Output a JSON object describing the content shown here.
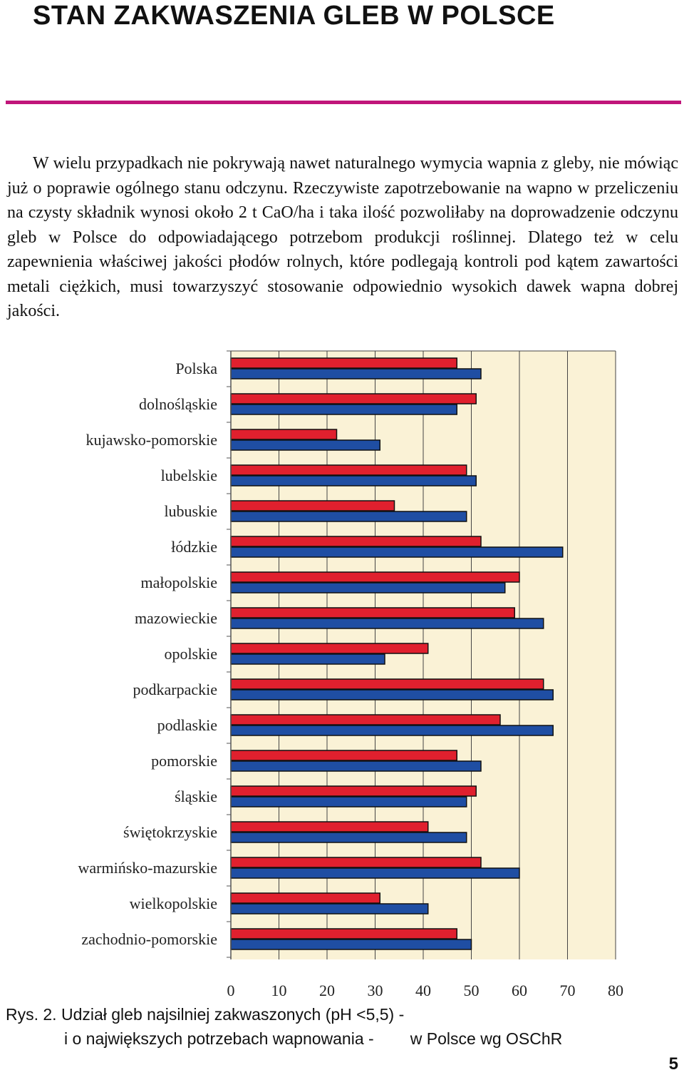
{
  "page": {
    "title": "STAN ZAKWASZENIA GLEB W POLSCE",
    "paragraph": "W wielu przypadkach nie pokrywają nawet naturalnego wymycia wapnia z gleby, nie mówiąc już o poprawie ogólnego stanu odczynu. Rzeczywiste zapotrzebowanie na wapno w przeliczeniu na czysty składnik wynosi około 2 t CaO/ha i taka ilość pozwoliłaby na doprowadzenie odczynu gleb w Polsce do odpowiadającego potrzebom produkcji roślinnej. Dlatego też w celu zapewnienia właściwej jakości płodów rolnych, które podlegają kontroli pod kątem zawartości metali ciężkich, musi towarzyszyć stosowanie odpowiednio wysokich dawek wapna dobrej jakości.",
    "caption_line1": "Rys. 2. Udział gleb najsilniej zakwaszonych (pH <5,5) -",
    "caption_line2": "i o największych potrzebach wapnowania -        w Polsce wg OSChR",
    "page_number": "5",
    "accent_color": "#c0157a"
  },
  "chart_data": {
    "type": "bar",
    "orientation": "horizontal",
    "categories": [
      "Polska",
      "dolnośląskie",
      "kujawsko-pomorskie",
      "lubelskie",
      "lubuskie",
      "łódzkie",
      "małopolskie",
      "mazowieckie",
      "opolskie",
      "podkarpackie",
      "podlaskie",
      "pomorskie",
      "śląskie",
      "świętokrzyskie",
      "warmińsko-mazurskie",
      "wielkopolskie",
      "zachodnio-pomorskie"
    ],
    "series": [
      {
        "color": "#e0202e",
        "values": [
          47,
          51,
          22,
          49,
          34,
          52,
          60,
          59,
          41,
          65,
          56,
          47,
          51,
          41,
          52,
          31,
          47
        ]
      },
      {
        "color": "#1f4ea3",
        "values": [
          52,
          47,
          31,
          51,
          49,
          69,
          57,
          65,
          32,
          67,
          67,
          52,
          49,
          49,
          60,
          41,
          50
        ]
      }
    ],
    "xlim": [
      0,
      80
    ],
    "xticks": [
      "0",
      "10",
      "20",
      "30",
      "40",
      "50",
      "60",
      "70",
      "80"
    ],
    "grid": true,
    "plot_background": "#faf2d6",
    "grid_color": "#444444"
  }
}
